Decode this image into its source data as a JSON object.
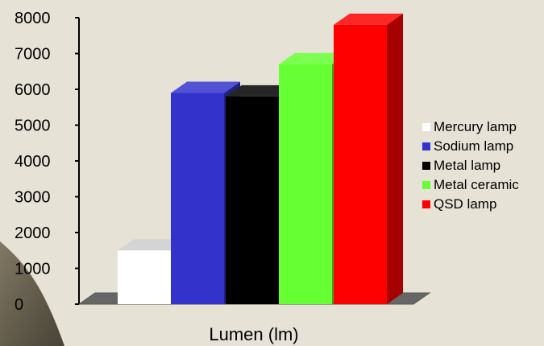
{
  "chart_data": {
    "type": "bar",
    "categories": [
      "Mercury lamp",
      "Sodium lamp",
      "Metal lamp",
      "Metal ceramic",
      "QSD lamp"
    ],
    "values": [
      1500,
      5900,
      5800,
      6700,
      7800
    ],
    "colors": [
      "#ffffff",
      "#3333cc",
      "#000000",
      "#66ff33",
      "#ff0000"
    ],
    "xlabel": "Lumen (lm)",
    "ylabel": "",
    "yticks": [
      "0",
      "1000",
      "2000",
      "3000",
      "4000",
      "5000",
      "6000",
      "7000",
      "8000"
    ],
    "ylim": [
      0,
      8000
    ],
    "legend": {
      "position": "right",
      "entries": [
        "Mercury lamp",
        "Sodium lamp",
        "Metal lamp",
        "Metal ceramic",
        "QSD lamp"
      ]
    },
    "grid": false
  }
}
